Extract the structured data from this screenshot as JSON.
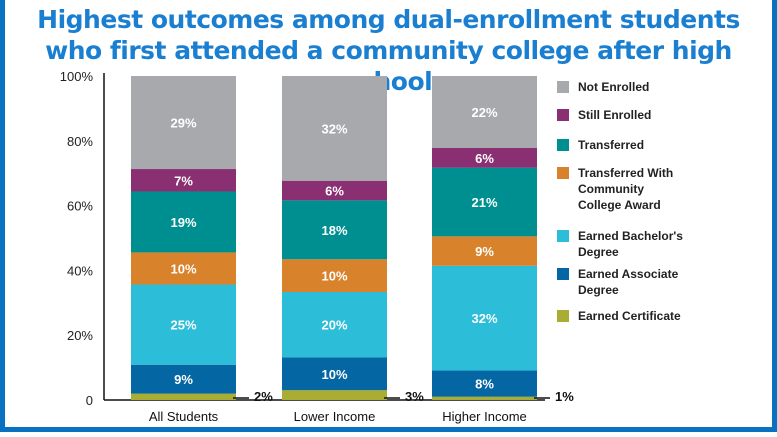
{
  "title_line1": "Highest outcomes among dual-enrollment students",
  "title_line2": "who first attended a community college after high school",
  "chart_data": {
    "type": "bar",
    "stacked": true,
    "categories": [
      "All Students",
      "Lower Income",
      "Higher Income"
    ],
    "yticks": [
      "0",
      "20%",
      "40%",
      "60%",
      "80%",
      "100%"
    ],
    "ylim": [
      0,
      100
    ],
    "grid": false,
    "legend_position": "right",
    "series": [
      {
        "name": "Earned Certificate",
        "color": "#a9ad34",
        "values": [
          2,
          3,
          1
        ]
      },
      {
        "name": "Earned Associate Degree",
        "color": "#0466a2",
        "values": [
          9,
          10,
          8
        ]
      },
      {
        "name": "Earned Bachelor's Degree",
        "color": "#2cbdd9",
        "values": [
          25,
          20,
          32
        ]
      },
      {
        "name": "Transferred With Community College Award",
        "color": "#d8832c",
        "values": [
          10,
          10,
          9
        ]
      },
      {
        "name": "Transferred",
        "color": "#008f90",
        "values": [
          19,
          18,
          21
        ]
      },
      {
        "name": "Still Enrolled",
        "color": "#8a2f72",
        "values": [
          7,
          6,
          6
        ]
      },
      {
        "name": "Not Enrolled",
        "color": "#a8a9ad",
        "values": [
          29,
          32,
          22
        ]
      }
    ],
    "labels": [
      [
        "2%",
        "9%",
        "25%",
        "10%",
        "19%",
        "7%",
        "29%"
      ],
      [
        "3%",
        "10%",
        "20%",
        "10%",
        "18%",
        "6%",
        "32%"
      ],
      [
        "1%",
        "8%",
        "32%",
        "9%",
        "21%",
        "6%",
        "22%"
      ]
    ],
    "legend": [
      {
        "lines": [
          "Not Enrolled"
        ],
        "series": 6
      },
      {
        "lines": [
          "Still Enrolled"
        ],
        "series": 5
      },
      {
        "lines": [
          "Transferred"
        ],
        "series": 4
      },
      {
        "lines": [
          "Transferred With",
          "Community",
          "College Award"
        ],
        "series": 3
      },
      {
        "lines": [
          "Earned Bachelor's",
          "Degree"
        ],
        "series": 2
      },
      {
        "lines": [
          "Earned Associate",
          "Degree"
        ],
        "series": 1
      },
      {
        "lines": [
          "Earned Certificate"
        ],
        "series": 0
      }
    ]
  }
}
